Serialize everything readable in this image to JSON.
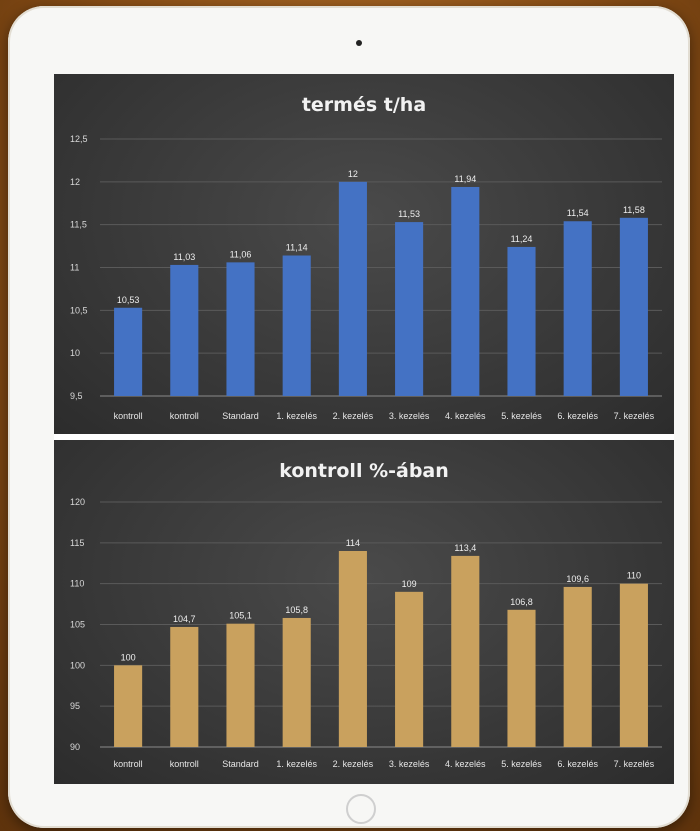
{
  "chart_data": [
    {
      "type": "bar",
      "title": "termés t/ha",
      "categories": [
        "kontroll",
        "kontroll",
        "Standard",
        "1. kezelés",
        "2. kezelés",
        "3. kezelés",
        "4. kezelés",
        "5. kezelés",
        "6. kezelés",
        "7. kezelés"
      ],
      "values": [
        10.53,
        11.03,
        11.06,
        11.14,
        12,
        11.53,
        11.94,
        11.24,
        11.54,
        11.58
      ],
      "value_labels": [
        "10,53",
        "11,03",
        "11,06",
        "11,14",
        "12",
        "11,53",
        "11,94",
        "11,24",
        "11,54",
        "11,58"
      ],
      "ylim": [
        9.5,
        12.5
      ],
      "yticks": [
        9.5,
        10,
        10.5,
        11,
        11.5,
        12,
        12.5
      ],
      "ytick_labels": [
        "9,5",
        "10",
        "10,5",
        "11",
        "11,5",
        "12",
        "12,5"
      ],
      "grid": true,
      "color": "#4472c4",
      "xlabel": "",
      "ylabel": ""
    },
    {
      "type": "bar",
      "title": "kontroll %-ában",
      "categories": [
        "kontroll",
        "kontroll",
        "Standard",
        "1. kezelés",
        "2. kezelés",
        "3. kezelés",
        "4. kezelés",
        "5. kezelés",
        "6. kezelés",
        "7. kezelés"
      ],
      "values": [
        100,
        104.7,
        105.1,
        105.8,
        114,
        109,
        113.4,
        106.8,
        109.6,
        110
      ],
      "value_labels": [
        "100",
        "104,7",
        "105,1",
        "105,8",
        "114",
        "109",
        "113,4",
        "106,8",
        "109,6",
        "110"
      ],
      "ylim": [
        90,
        120
      ],
      "yticks": [
        90,
        95,
        100,
        105,
        110,
        115,
        120
      ],
      "ytick_labels": [
        "90",
        "95",
        "100",
        "105",
        "110",
        "115",
        "120"
      ],
      "grid": true,
      "color": "#c9a15e",
      "xlabel": "",
      "ylabel": ""
    }
  ]
}
